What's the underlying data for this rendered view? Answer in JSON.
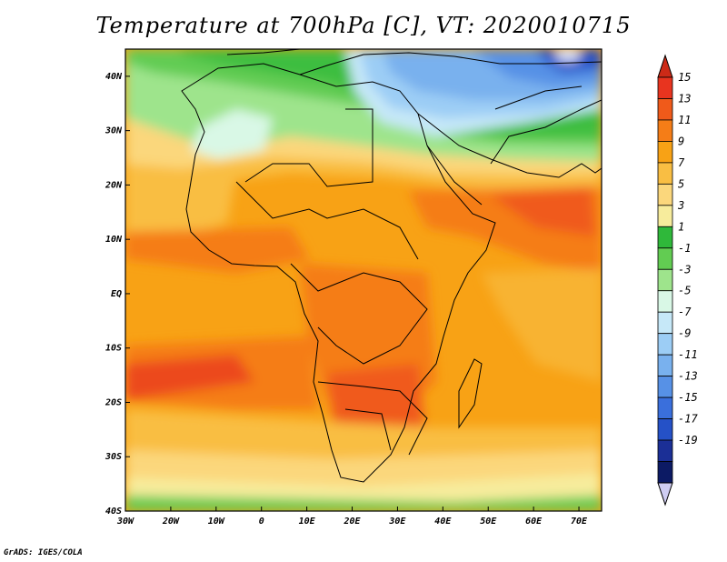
{
  "title": "Temperature at 700hPa [C], VT: 2020010715",
  "credit": "GrADS: IGES/COLA",
  "map": {
    "lon_ticks": [
      "30W",
      "20W",
      "10W",
      "0",
      "10E",
      "20E",
      "30E",
      "40E",
      "50E",
      "60E",
      "70E"
    ],
    "lat_ticks": [
      "40N",
      "30N",
      "20N",
      "10N",
      "EQ",
      "10S",
      "20S",
      "30S",
      "40S"
    ],
    "lon_range": [
      -30,
      75
    ],
    "lat_range": [
      -40,
      45
    ]
  },
  "colorbar": {
    "labels": [
      "15",
      "13",
      "11",
      "9",
      "7",
      "5",
      "3",
      "1",
      "-1",
      "-3",
      "-5",
      "-7",
      "-9",
      "-11",
      "-13",
      "-15",
      "-17",
      "-19"
    ],
    "colors": [
      "#e8341f",
      "#f05a1a",
      "#f57d17",
      "#f8a215",
      "#f9be43",
      "#fbd77c",
      "#f7ec9c",
      "#2fb83a",
      "#62cc52",
      "#9ee48c",
      "#d9f8e6",
      "#c6e8f8",
      "#9ccdf5",
      "#79b1ee",
      "#5791e6",
      "#3a6fdc",
      "#2551c7",
      "#1b2f96",
      "#0c1a64"
    ],
    "over_color": "#cc2a17",
    "under_color": "#cfcdf2"
  }
}
